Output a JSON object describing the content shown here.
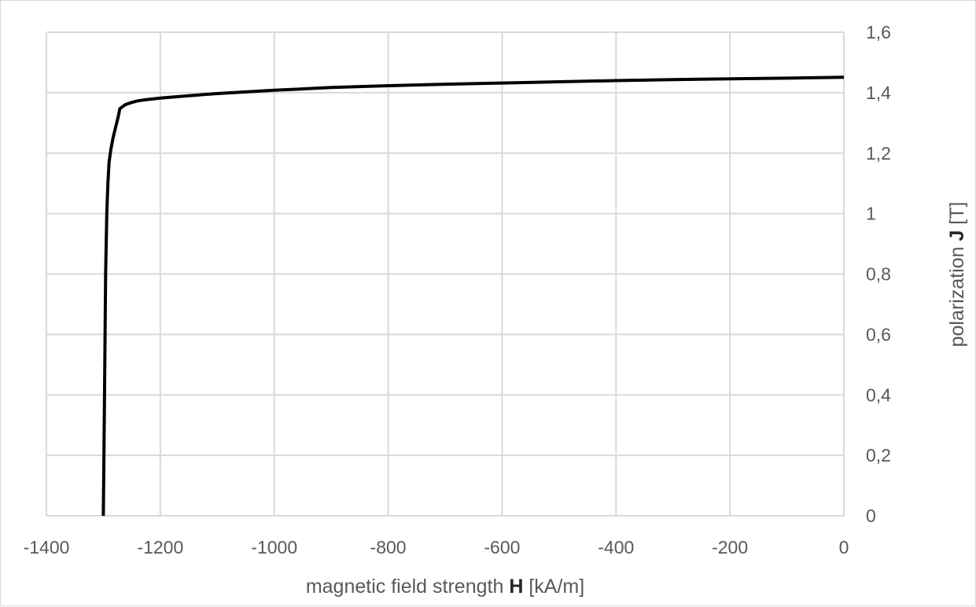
{
  "chart_data": {
    "type": "line",
    "title": "",
    "xlabel": {
      "prefix": "magnetic field strength ",
      "symbol": "H",
      "suffix": " [kA/m]"
    },
    "ylabel": {
      "prefix": "polarization ",
      "symbol": "J",
      "suffix": " [T]"
    },
    "xlim": [
      -1400,
      0
    ],
    "ylim": [
      0,
      1.6
    ],
    "x_ticks": [
      -1400,
      -1200,
      -1000,
      -800,
      -600,
      -400,
      -200,
      0
    ],
    "x_tick_labels": [
      "-1400",
      "-1200",
      "-1000",
      "-800",
      "-600",
      "-400",
      "-200",
      "0"
    ],
    "y_ticks": [
      0,
      0.2,
      0.4,
      0.6,
      0.8,
      1,
      1.2,
      1.4,
      1.6
    ],
    "y_tick_labels": [
      "0",
      "0,2",
      "0,4",
      "0,6",
      "0,8",
      "1",
      "1,2",
      "1,4",
      "1,6"
    ],
    "y_axis_position": "right",
    "grid": true,
    "legend": "none",
    "line_color": "#000000",
    "grid_color": "#d9d9d9",
    "series": [
      {
        "x": [
          -1300,
          -1298,
          -1296,
          -1294,
          -1292,
          -1290,
          -1287,
          -1283,
          -1278,
          -1274,
          -1271,
          -1262,
          -1250,
          -1240,
          -1225,
          -1200,
          -1150,
          -1100,
          -1000,
          -900,
          -800,
          -700,
          -600,
          -500,
          -400,
          -300,
          -200,
          -100,
          0
        ],
        "y": [
          0,
          0.4,
          0.8,
          1.0,
          1.1,
          1.17,
          1.21,
          1.25,
          1.29,
          1.32,
          1.347,
          1.36,
          1.368,
          1.373,
          1.377,
          1.382,
          1.39,
          1.397,
          1.408,
          1.417,
          1.423,
          1.428,
          1.432,
          1.436,
          1.44,
          1.443,
          1.446,
          1.448,
          1.451
        ]
      }
    ]
  }
}
